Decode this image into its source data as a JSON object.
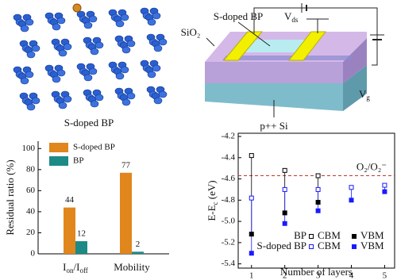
{
  "molecule": {
    "label": "S-doped BP"
  },
  "device": {
    "channel_label": "S-doped BP",
    "oxide_label": "SiO₂",
    "drain_label": [
      "V",
      "ds"
    ],
    "gate_label": [
      "V",
      "g"
    ],
    "substrate_label": "p++ Si"
  },
  "chart_data": [
    {
      "type": "bar",
      "ylabel": "Residual ratio (%)",
      "categories": [
        [
          "I",
          "on",
          "/I",
          "off"
        ],
        [
          "Mobility"
        ]
      ],
      "series": [
        {
          "name": "S-doped BP",
          "color": "#e0861c",
          "values": [
            44,
            77
          ]
        },
        {
          "name": "BP",
          "color": "#1d8a86",
          "values": [
            12,
            2
          ]
        }
      ],
      "ylim": [
        0,
        107
      ],
      "yticks": [
        0,
        20,
        40,
        60,
        80,
        100
      ],
      "legend": "upper left"
    },
    {
      "type": "scatter",
      "ylabel": [
        "E-E",
        "c",
        " (eV)"
      ],
      "xlabel": "Number of layers",
      "x": [
        1,
        2,
        3,
        4,
        5
      ],
      "legend_groups": [
        {
          "name": "BP",
          "color": "#000000"
        },
        {
          "name": "S-doped BP",
          "color": "#1a1aff"
        }
      ],
      "series": [
        {
          "name": "CBM",
          "group": 0,
          "marker": "open",
          "color": "#000000",
          "values": [
            -4.38,
            -4.52,
            -4.57,
            null,
            null
          ]
        },
        {
          "name": "VBM",
          "group": 0,
          "marker": "filled",
          "color": "#000000",
          "values": [
            -5.12,
            -4.92,
            -4.82,
            null,
            null
          ]
        },
        {
          "name": "CBM",
          "group": 1,
          "marker": "open",
          "color": "#1a1aff",
          "values": [
            -4.78,
            -4.7,
            -4.7,
            -4.68,
            -4.66
          ]
        },
        {
          "name": "VBM",
          "group": 1,
          "marker": "filled",
          "color": "#1a1aff",
          "values": [
            -5.3,
            -5.02,
            -4.9,
            -4.8,
            -4.72
          ]
        }
      ],
      "reference_line": {
        "value": -4.57,
        "label": "O₂/O₂⁻",
        "color": "#c0392b"
      },
      "xlim": [
        0.6,
        5.3
      ],
      "xticks": [
        1,
        2,
        3,
        4,
        5
      ],
      "ylim": [
        -5.44,
        -4.17
      ],
      "yticks": [
        -5.4,
        -5.2,
        {
          "value": -5,
          "label": "-5.0"
        },
        -4.8,
        -4.6,
        -4.4,
        -4.2
      ]
    }
  ]
}
